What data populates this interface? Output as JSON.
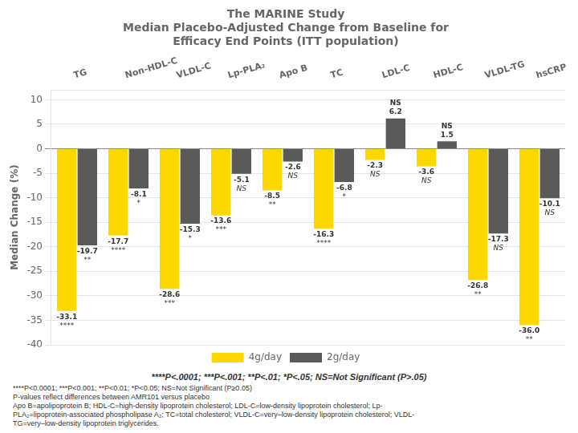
{
  "chart_data": {
    "type": "bar",
    "title": [
      "The MARINE Study",
      "Median Placebo-Adjusted Change from Baseline for",
      "Efficacy End Points (ITT population)"
    ],
    "categories": [
      "TG",
      "Non-HDL-C",
      "VLDL-C",
      "Lp-PLA₂",
      "Apo B",
      "TC",
      "LDL-C",
      "HDL-C",
      "VLDL-TG",
      "hsCRP"
    ],
    "series": [
      {
        "name": "4g/day",
        "color": "#FFD700",
        "values": [
          -33.1,
          -17.7,
          -28.6,
          -13.6,
          -8.5,
          -16.3,
          -2.3,
          -3.6,
          -26.8,
          -36.0
        ],
        "value_labels": [
          "-33.1",
          "-17.7",
          "-28.6",
          "-13.6",
          "-8.5",
          "-16.3",
          "-2.3",
          "-3.6",
          "-26.8",
          "-36.0"
        ],
        "significance": [
          "****",
          "****",
          "***",
          "***",
          "**",
          "****",
          "NS",
          "NS",
          "**",
          "**"
        ]
      },
      {
        "name": "2g/day",
        "color": "#5A5A5A",
        "values": [
          -19.7,
          -8.1,
          -15.3,
          -5.1,
          -2.6,
          -6.8,
          6.2,
          1.5,
          -17.3,
          -10.1
        ],
        "value_labels": [
          "-19.7",
          "-8.1",
          "-15.3",
          "-5.1",
          "-2.6",
          "-6.8",
          "6.2",
          "1.5",
          "-17.3",
          "-10.1"
        ],
        "significance": [
          "**",
          "*",
          "*",
          "NS",
          "NS",
          "*",
          "NS",
          "NS",
          "NS",
          "NS"
        ]
      }
    ],
    "ylabel": "Median Change (%)",
    "ylim": [
      -40,
      12
    ],
    "yticks": [
      -40,
      -35,
      -30,
      -25,
      -20,
      -15,
      -10,
      -5,
      0,
      5,
      10
    ],
    "grid": true,
    "legend": "bottom",
    "data_labels": true,
    "annotations": [
      "****P<.0001; ***P<.001; **P<.01; *P<.05; NS=Not Significant (P>.05)",
      "****P<0.0001; ***P<0.001; **P<0.01; *P<0.05; NS=Not Significant (P≥0.05)",
      "P-values reflect differences between AMR101 versus placebo",
      "Apo B=apolipoprotein B; HDL-C=high-density lipoprotein cholesterol; LDL-C=low-density lipoprotein cholesterol; Lp-",
      "PLA₂=lipoprotein-associated phospholipase A₂; TC=total cholesterol; VLDL-C=very–low-density lipoprotein cholesterol; VLDL-",
      "TG=very–low-density lipoprotein triglycerides."
    ]
  }
}
